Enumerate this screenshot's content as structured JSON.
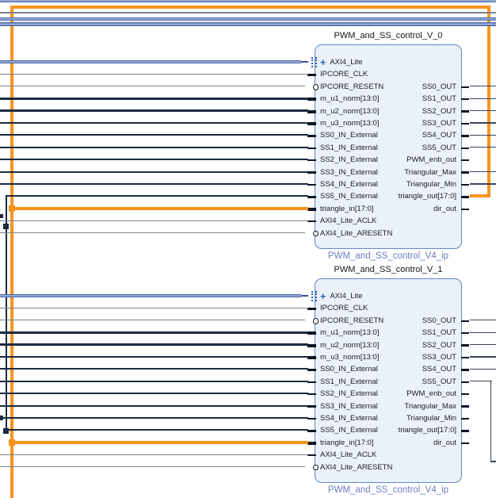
{
  "colors": {
    "orange": "#F7941E",
    "wire_dark": "#1B2A42",
    "wire_gray": "#7B828E",
    "wire_thin": "#39455C",
    "blue_edge": "#4A69A8",
    "blue_mid": "#AFBEDE",
    "block_fill": "#EAF1FB",
    "block_border": "#6487C2",
    "subtitle_blue": "#6D7EC0",
    "plus_blue": "#2B5BB8"
  },
  "blocks": [
    {
      "title": "PWM_and_SS_control_V_0",
      "type_label": "PWM_and_SS_control_V4_ip",
      "interface_pin": {
        "label": "AXI4_Lite",
        "expand_icon": "plus-icon"
      },
      "left_ports": [
        "IPCORE_CLK",
        "IPCORE_RESETN",
        "m_u1_norm[13:0]",
        "m_u2_norm[13:0]",
        "m_u3_norm[13:0]",
        "SS0_IN_External",
        "SS1_IN_External",
        "SS2_IN_External",
        "SS3_IN_External",
        "SS4_IN_External",
        "SS5_IN_External",
        "triangle_in[17:0]",
        "AXI4_Lite_ACLK",
        "AXI4_Lite_ARESETN"
      ],
      "right_ports": [
        "SS0_OUT",
        "SS1_OUT",
        "SS2_OUT",
        "SS3_OUT",
        "SS4_OUT",
        "SS5_OUT",
        "PWM_enb_out",
        "Triangular_Max",
        "Triangular_Min",
        "triangle_out[17:0]",
        "dir_out"
      ]
    },
    {
      "title": "PWM_and_SS_control_V_1",
      "type_label": "PWM_and_SS_control_V4_ip",
      "interface_pin": {
        "label": "AXI4_Lite",
        "expand_icon": "plus-icon"
      },
      "left_ports": [
        "IPCORE_CLK",
        "IPCORE_RESETN",
        "m_u1_norm[13:0]",
        "m_u2_norm[13:0]",
        "m_u3_norm[13:0]",
        "SS0_IN_External",
        "SS1_IN_External",
        "SS2_IN_External",
        "SS3_IN_External",
        "SS4_IN_External",
        "SS5_IN_External",
        "triangle_in[17:0]",
        "AXI4_Lite_ACLK",
        "AXI4_Lite_ARESETN"
      ],
      "right_ports": [
        "SS0_OUT",
        "SS1_OUT",
        "SS2_OUT",
        "SS3_OUT",
        "SS4_OUT",
        "SS5_OUT",
        "PWM_enb_out",
        "Triangular_Max",
        "Triangular_Min",
        "triangle_out[17:0]",
        "dir_out"
      ]
    }
  ]
}
